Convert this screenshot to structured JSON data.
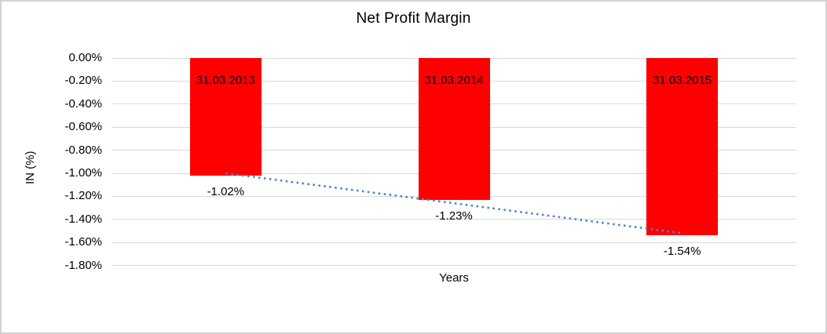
{
  "chart": {
    "title": "Net Profit Margin",
    "x_axis_title": "Years",
    "y_axis_title": "IN (%)"
  },
  "chart_data": {
    "type": "bar",
    "title": "Net Profit Margin",
    "xlabel": "Years",
    "ylabel": "IN (%)",
    "categories": [
      "31.03.2013",
      "31.03.2014",
      "31.03.2015"
    ],
    "values": [
      -1.02,
      -1.23,
      -1.54
    ],
    "value_labels": [
      "-1.02%",
      "-1.23%",
      "-1.54%"
    ],
    "ylim": [
      -1.8,
      0
    ],
    "y_ticks": [
      0,
      -0.2,
      -0.4,
      -0.6,
      -0.8,
      -1.0,
      -1.2,
      -1.4,
      -1.6,
      -1.8
    ],
    "y_tick_labels": [
      "0.00%",
      "-0.20%",
      "-0.40%",
      "-0.60%",
      "-0.80%",
      "-1.00%",
      "-1.20%",
      "-1.40%",
      "-1.60%",
      "-1.80%"
    ],
    "grid": true,
    "legend": "none",
    "colors": {
      "bar": "#FF0000",
      "gridline": "#D9D9D9",
      "text": "#000000",
      "trendline": "#4F86C6",
      "frame_border": "#D2D2D2"
    },
    "trendline": {
      "type": "linear",
      "style": "dotted",
      "start_value": -1.0,
      "end_value": -1.52
    }
  }
}
